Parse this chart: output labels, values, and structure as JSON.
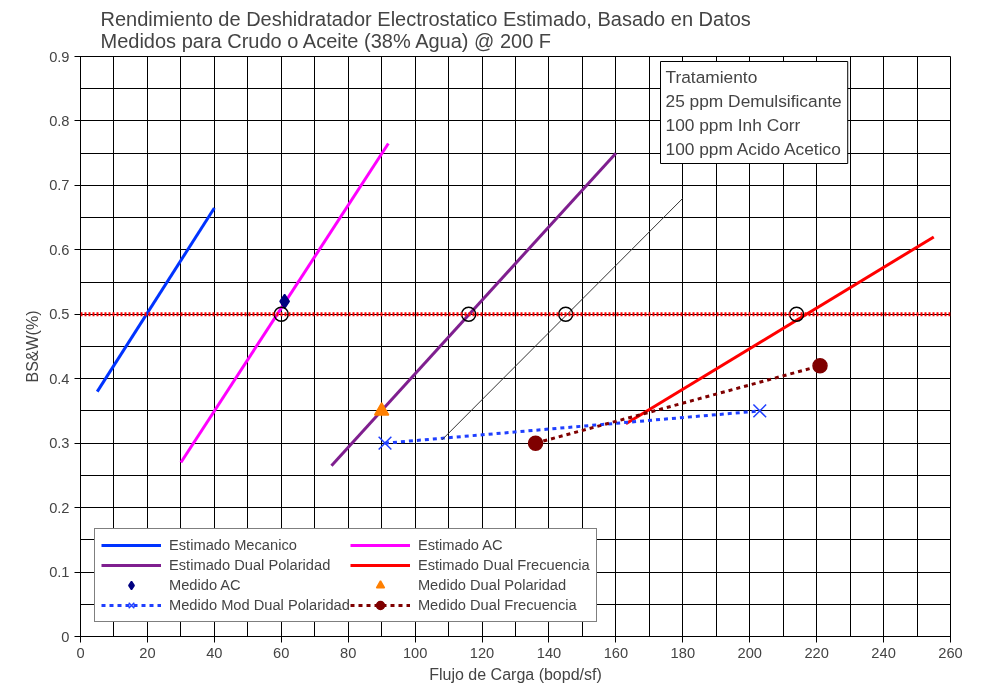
{
  "chart_data": {
    "type": "line",
    "title": "Rendimiento de Deshidratador Electrostatico Estimado, Basado en Datos\nMedidos para Crudo o Aceite (38% Agua) @ 200 F",
    "xlabel": "Flujo de Carga (bopd/sf)",
    "ylabel": "BS&W(%)",
    "xlim": [
      0,
      260
    ],
    "xticks": [
      0,
      20,
      40,
      60,
      80,
      100,
      120,
      140,
      160,
      180,
      200,
      220,
      240,
      260
    ],
    "ylim": [
      0,
      0.9
    ],
    "yticks": [
      0,
      0.1,
      0.2,
      0.3,
      0.4,
      0.5,
      0.6,
      0.7,
      0.8,
      0.9
    ],
    "grid": true,
    "legend": "bottom left",
    "annotations": [
      "Tratamiento\n25 ppm Demulsificante\n100 ppm  Inh  Corr\n100 ppm Acido Acetico"
    ],
    "ref_lines": [
      {
        "axis": "y",
        "value": 0.5,
        "color": "#ff0000",
        "line_style": "dotted"
      }
    ],
    "series": [
      {
        "name": "Estimado Mecanico",
        "color": "#0033ff",
        "x": [
          5,
          40
        ],
        "values": [
          0.38,
          0.665
        ]
      },
      {
        "name": "Estimado AC",
        "type": "line",
        "color": "#ff00ff",
        "x": [
          30,
          92
        ],
        "values": [
          0.27,
          0.765
        ]
      },
      {
        "name": "Estimado Dual Polaridad",
        "type": "line",
        "color": "#7f1f8f",
        "x": [
          75,
          160
        ],
        "values": [
          0.265,
          0.75
        ]
      },
      {
        "name": "Estimado Dual Frecuencia",
        "type": "line",
        "color": "#ff0000",
        "x": [
          163,
          255
        ],
        "values": [
          0.33,
          0.62
        ]
      },
      {
        "name": "Medido AC",
        "type": "scatter",
        "marker": "diamond",
        "color": "#000080",
        "x": [
          61
        ],
        "values": [
          0.52
        ]
      },
      {
        "name": "Medido Dual Polaridad",
        "type": "scatter",
        "marker": "triangle",
        "color": "#ff7f00",
        "x": [
          90
        ],
        "values": [
          0.35
        ]
      },
      {
        "name": "Medido Mod Dual Polaridad",
        "type": "line",
        "marker": "cross",
        "line_style": "dashed",
        "color": "#1f3fff",
        "x": [
          91,
          203
        ],
        "values": [
          0.3,
          0.35
        ]
      },
      {
        "name": "Medido Dual Frecuencia",
        "type": "line",
        "marker": "circle",
        "line_style": "dashed",
        "color": "#7f0000",
        "x": [
          136,
          221
        ],
        "values": [
          0.3,
          0.42
        ]
      },
      {
        "type": "line",
        "color": "#333333",
        "x": [
          108,
          180
        ],
        "values": [
          0.305,
          0.68
        ]
      },
      {
        "type": "scatter",
        "marker": "circle",
        "color": "#000000",
        "x": [
          60,
          116,
          145,
          214
        ],
        "values": [
          0.5,
          0.5,
          0.5,
          0.5
        ]
      }
    ]
  }
}
